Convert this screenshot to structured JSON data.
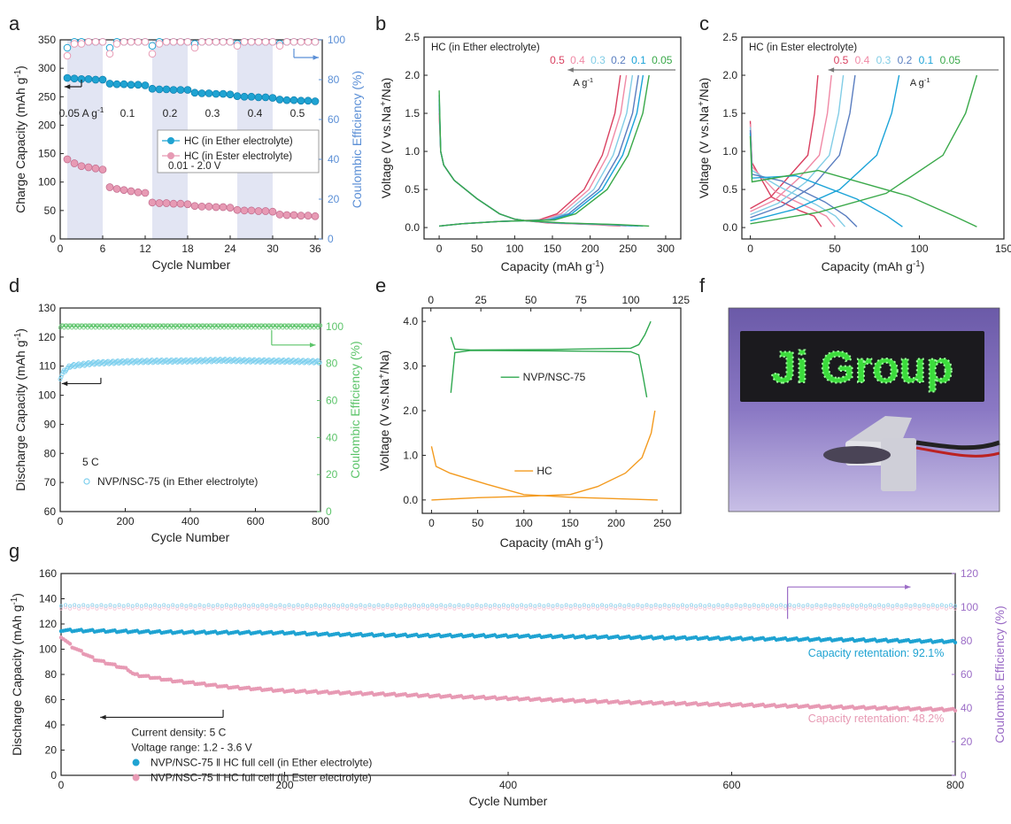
{
  "panel_letters": [
    "a",
    "b",
    "c",
    "d",
    "e",
    "f",
    "g"
  ],
  "colors": {
    "ether": "#1fa3d2",
    "ester": "#e79ab4",
    "ce_axis_a": "#5b8fd6",
    "ce_axis_d": "#5cc46a",
    "ce_axis_g": "#9b6cc6",
    "shade": "#d8dcef",
    "nvp": "#2fa84f",
    "hc": "#f39a1e",
    "rate_05": "#d94060",
    "rate_04": "#f08aa6",
    "rate_03": "#82cde6",
    "rate_02": "#5a7ec0",
    "rate_01": "#1ba3d8",
    "rate_005": "#3aa94a"
  },
  "photo": {
    "text": "Ji Group",
    "description_icon": "led-display-icon"
  },
  "chart_data": [
    {
      "id": "a",
      "type": "scatter",
      "xlabel": "Cycle Number",
      "ylabel": "Charge Capacity (mAh g",
      "ylabel_sup": "-1",
      "ylabel_end": ")",
      "y2label": "Coulombic Efficiency (%)",
      "xlim": [
        0,
        37
      ],
      "ylim": [
        0,
        350
      ],
      "y2lim": [
        0,
        100
      ],
      "xticks": [
        0,
        6,
        12,
        18,
        24,
        30,
        36
      ],
      "yticks": [
        0,
        50,
        100,
        150,
        200,
        250,
        300,
        350
      ],
      "y2ticks": [
        0,
        20,
        40,
        60,
        80,
        100
      ],
      "rate_labels": [
        "0.05 A g",
        "0.1",
        "0.2",
        "0.3",
        "0.4",
        "0.5"
      ],
      "rate_label_sup": "-1",
      "voltage_note": "0.01 - 2.0 V",
      "series": [
        {
          "name": "HC (in Ether electrolyte)",
          "values": [
            283,
            282,
            281,
            281,
            280,
            280,
            273,
            272,
            272,
            271,
            271,
            270,
            264,
            263,
            263,
            262,
            262,
            262,
            257,
            256,
            256,
            255,
            255,
            254,
            251,
            250,
            250,
            249,
            249,
            248,
            245,
            244,
            244,
            243,
            243,
            242
          ]
        },
        {
          "name": "HC (in Ester electrolyte)",
          "values": [
            140,
            133,
            128,
            126,
            124,
            122,
            91,
            88,
            86,
            84,
            82,
            81,
            64,
            63,
            63,
            62,
            62,
            61,
            58,
            57,
            57,
            56,
            56,
            55,
            51,
            50,
            50,
            49,
            49,
            48,
            43,
            42,
            42,
            41,
            41,
            40
          ]
        }
      ],
      "ce_series": [
        {
          "name": "ether_ce",
          "values": [
            96,
            99,
            99,
            99,
            99,
            99,
            96,
            99,
            99,
            99,
            99,
            99,
            97,
            99,
            99,
            99,
            99,
            99,
            98,
            99,
            99,
            99,
            99,
            99,
            98,
            99,
            99,
            99,
            99,
            99,
            98,
            99,
            99,
            99,
            99,
            99
          ]
        },
        {
          "name": "ester_ce",
          "values": [
            92,
            98,
            98,
            99,
            99,
            99,
            93,
            98,
            99,
            99,
            99,
            99,
            93,
            98,
            99,
            99,
            99,
            99,
            96,
            99,
            99,
            99,
            99,
            99,
            97,
            99,
            99,
            99,
            99,
            99,
            97,
            99,
            99,
            99,
            99,
            99
          ]
        }
      ]
    },
    {
      "id": "b",
      "type": "line",
      "title": "HC (in Ether electrolyte)",
      "xlabel": "Capacity (mAh g",
      "xlabel_sup": "-1",
      "ylabel": "Voltage (V vs.Na",
      "xlim": [
        -20,
        320
      ],
      "ylim": [
        -0.15,
        2.5
      ],
      "xticks": [
        0,
        50,
        100,
        150,
        200,
        250,
        300
      ],
      "yticks": [
        0.0,
        0.5,
        1.0,
        1.5,
        2.0,
        2.5
      ],
      "rates": [
        "0.5",
        "0.4",
        "0.3",
        "0.2",
        "0.1",
        "0.05"
      ],
      "rate_unit": "A g",
      "discharge_end": [
        240,
        248,
        256,
        264,
        270,
        278
      ],
      "charge_end": [
        240,
        248,
        256,
        264,
        270,
        278
      ]
    },
    {
      "id": "c",
      "type": "line",
      "title": "HC (in Ester electrolyte)",
      "xlabel": "Capacity (mAh g",
      "xlabel_sup": "-1",
      "ylabel": "Voltage (V vs.Na",
      "xlim": [
        -5,
        150
      ],
      "ylim": [
        -0.15,
        2.5
      ],
      "xticks": [
        0,
        50,
        100,
        150
      ],
      "yticks": [
        0.0,
        0.5,
        1.0,
        1.5,
        2.0,
        2.5
      ],
      "rates": [
        "0.5",
        "0.4",
        "0.3",
        "0.2",
        "0.1",
        "0.05"
      ],
      "rate_unit": "A g",
      "discharge_end": [
        42,
        50,
        56,
        63,
        90,
        134
      ],
      "charge_end": [
        40,
        48,
        55,
        62,
        88,
        134
      ]
    },
    {
      "id": "d",
      "type": "scatter",
      "xlabel": "Cycle Number",
      "ylabel": "Discharge Capacity (mAh g",
      "y2label": "Coulombic Efficiency (%)",
      "xlim": [
        0,
        800
      ],
      "ylim": [
        60,
        130
      ],
      "y2lim": [
        0,
        110
      ],
      "xticks": [
        0,
        200,
        400,
        600,
        800
      ],
      "yticks": [
        60,
        70,
        80,
        90,
        100,
        110,
        120,
        130
      ],
      "y2ticks": [
        0,
        20,
        40,
        60,
        80,
        100
      ],
      "rate_note": "5 C",
      "series": [
        {
          "name": "NVP/NSC-75 (in Ether electrolyte)",
          "x": [
            0,
            10,
            30,
            100,
            200,
            300,
            400,
            500,
            600,
            700,
            800
          ],
          "values": [
            106,
            108,
            110,
            111,
            111.5,
            111.7,
            111.8,
            112,
            111.8,
            111.7,
            111.5
          ]
        }
      ],
      "ce_values": 100
    },
    {
      "id": "e",
      "type": "line",
      "xlabel": "Capacity (mAh g",
      "ylabel": "Voltage (V vs.Na",
      "xlim": [
        -10,
        270
      ],
      "ylim": [
        -0.3,
        4.3
      ],
      "xticks": [
        0,
        50,
        100,
        150,
        200,
        250
      ],
      "yticks": [
        0.0,
        1.0,
        2.0,
        3.0,
        4.0
      ],
      "top_xlim": [
        -4.3,
        125
      ],
      "top_xticks": [
        0,
        25,
        50,
        75,
        100,
        125
      ],
      "series": [
        {
          "name": "NVP/NSC-75"
        },
        {
          "name": "HC"
        }
      ]
    },
    {
      "id": "g",
      "type": "scatter",
      "xlabel": "Cycle Number",
      "ylabel": "Discharge Capacity (mAh g",
      "y2label": "Coulombic Efficiency (%)",
      "xlim": [
        0,
        800
      ],
      "ylim": [
        0,
        160
      ],
      "y2lim": [
        0,
        120
      ],
      "xticks": [
        0,
        200,
        400,
        600,
        800
      ],
      "yticks": [
        0,
        20,
        40,
        60,
        80,
        100,
        120,
        140,
        160
      ],
      "y2ticks": [
        0,
        20,
        40,
        60,
        80,
        100,
        120
      ],
      "notes": [
        "Current density: 5 C",
        "Voltage range: 1.2 - 3.6 V"
      ],
      "series": [
        {
          "name": "NVP/NSC-75 ǁ HC full cell (in Ether electrolyte)",
          "x": [
            0,
            100,
            200,
            230,
            300,
            400,
            500,
            600,
            700,
            800
          ],
          "values": [
            115,
            113.5,
            113,
            112,
            111,
            110.5,
            109.5,
            108.5,
            107.5,
            106
          ],
          "retention": "Capacity retentation: 92.1%"
        },
        {
          "name": "NVP/NSC-75 ǁ HC full cell (in Ester electrolyte)",
          "x": [
            0,
            10,
            30,
            60,
            65,
            100,
            150,
            200,
            300,
            400,
            500,
            600,
            700,
            800
          ],
          "values": [
            110,
            102,
            92,
            84,
            80,
            75,
            70,
            67,
            64,
            61,
            58,
            56,
            54,
            52
          ],
          "retention": "Capacity retentation: 48.2%"
        }
      ]
    }
  ]
}
